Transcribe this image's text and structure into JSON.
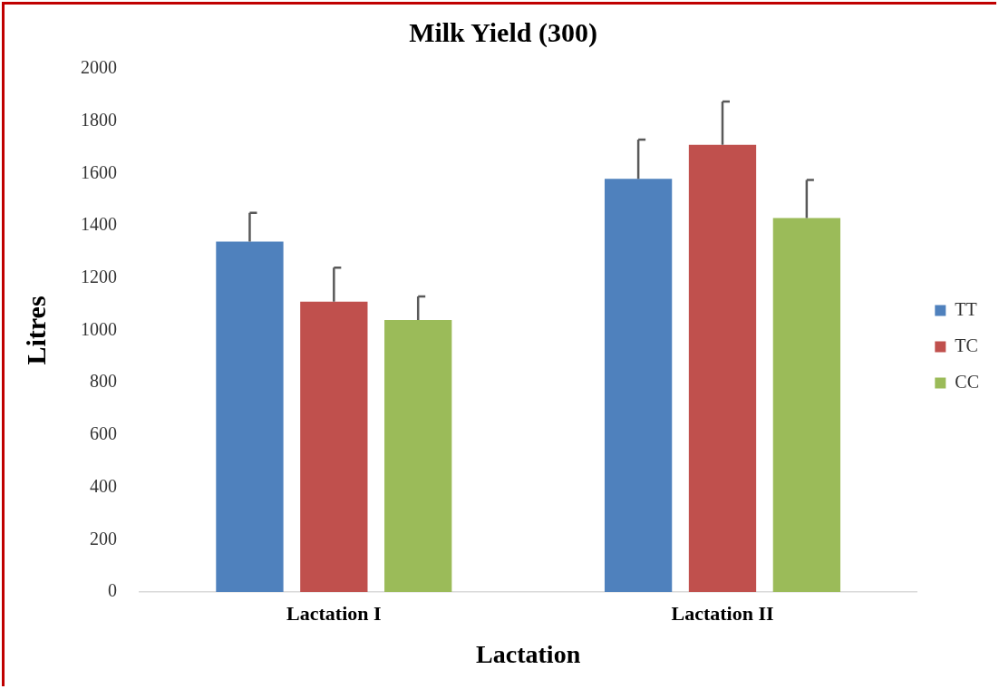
{
  "chart_data": {
    "type": "bar",
    "title": "Milk Yield (300)",
    "xlabel": "Lactation",
    "ylabel": "Litres",
    "categories": [
      "Lactation I",
      "Lactation II"
    ],
    "series": [
      {
        "name": "TT",
        "color": "#4f81bd",
        "values": [
          1340,
          1580
        ],
        "errors": [
          [
            1340,
            1450
          ],
          [
            1580,
            1730
          ]
        ]
      },
      {
        "name": "TC",
        "color": "#c0504d",
        "values": [
          1110,
          1710
        ],
        "errors": [
          [
            1110,
            1240
          ],
          [
            1710,
            1875
          ]
        ]
      },
      {
        "name": "CC",
        "color": "#9bbb59",
        "values": [
          1040,
          1430
        ],
        "errors": [
          [
            1040,
            1130
          ],
          [
            1430,
            1575
          ]
        ]
      }
    ],
    "ylim": [
      0,
      2000
    ],
    "yticks": [
      0,
      200,
      400,
      600,
      800,
      1000,
      1200,
      1400,
      1600,
      1800,
      2000
    ],
    "grid": false,
    "legend": "right"
  }
}
